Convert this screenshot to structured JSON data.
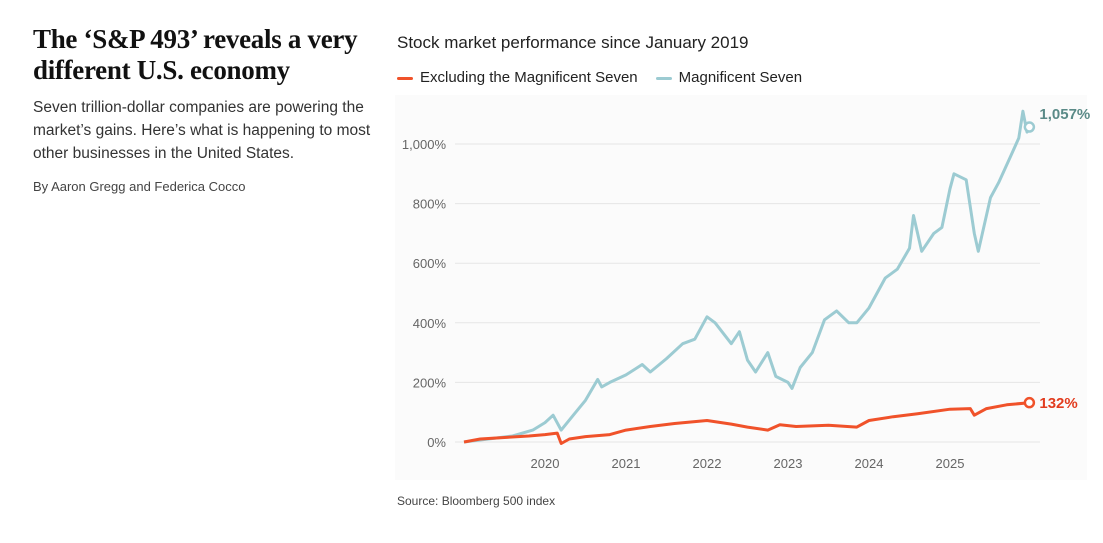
{
  "headline": "The ‘S&P 493’ reveals a very different U.S. economy",
  "dek": "Seven trillion-dollar companies are powering the market’s gains. Here’s what is happening to most other businesses in the United States.",
  "byline": "By Aaron Gregg and Federica Cocco",
  "source": "Source: Bloomberg 500 index",
  "chart_data": {
    "type": "line",
    "title": "Stock market performance since January 2019",
    "xlabel": "",
    "ylabel": "",
    "ylim": [
      0,
      1100
    ],
    "yticks": [
      0,
      200,
      400,
      600,
      800,
      1000
    ],
    "ytick_labels": [
      "0%",
      "200%",
      "400%",
      "600%",
      "800%",
      "1,000%"
    ],
    "xticks": [
      2020,
      2021,
      2022,
      2023,
      2024,
      2025
    ],
    "xtick_labels": [
      "2020",
      "2021",
      "2022",
      "2023",
      "2024",
      "2025"
    ],
    "grid": "horizontal",
    "legend": "top-left",
    "series": [
      {
        "name": "Excluding the Magnificent Seven",
        "color": "#f0522a",
        "end_label": "132%",
        "end_label_color": "#e23c1f",
        "x": [
          2019.0,
          2019.2,
          2019.5,
          2019.8,
          2020.0,
          2020.15,
          2020.2,
          2020.3,
          2020.5,
          2020.8,
          2021.0,
          2021.3,
          2021.6,
          2022.0,
          2022.3,
          2022.5,
          2022.75,
          2022.9,
          2023.1,
          2023.5,
          2023.85,
          2024.0,
          2024.3,
          2024.6,
          2025.0,
          2025.25,
          2025.3,
          2025.45,
          2025.7,
          2025.98
        ],
        "y": [
          0,
          10,
          15,
          20,
          25,
          30,
          -5,
          10,
          18,
          25,
          40,
          52,
          62,
          72,
          60,
          50,
          40,
          58,
          52,
          56,
          50,
          72,
          85,
          95,
          110,
          112,
          90,
          112,
          125,
          132
        ]
      },
      {
        "name": "Magnificent Seven",
        "color": "#9ccbd2",
        "end_label": "1,057%",
        "end_label_color": "#5a8a87",
        "x": [
          2019.0,
          2019.3,
          2019.6,
          2019.85,
          2020.0,
          2020.1,
          2020.2,
          2020.35,
          2020.5,
          2020.65,
          2020.7,
          2020.8,
          2021.0,
          2021.2,
          2021.3,
          2021.5,
          2021.7,
          2021.85,
          2022.0,
          2022.1,
          2022.3,
          2022.4,
          2022.5,
          2022.6,
          2022.75,
          2022.85,
          2023.0,
          2023.05,
          2023.15,
          2023.3,
          2023.45,
          2023.6,
          2023.75,
          2023.85,
          2024.0,
          2024.2,
          2024.35,
          2024.5,
          2024.55,
          2024.65,
          2024.8,
          2024.9,
          2025.0,
          2025.05,
          2025.2,
          2025.3,
          2025.35,
          2025.5,
          2025.6,
          2025.75,
          2025.85,
          2025.9,
          2025.95,
          2025.98
        ],
        "y": [
          0,
          10,
          20,
          40,
          65,
          90,
          40,
          90,
          140,
          210,
          185,
          200,
          225,
          260,
          235,
          280,
          330,
          345,
          420,
          400,
          330,
          370,
          275,
          235,
          300,
          220,
          200,
          180,
          250,
          300,
          410,
          440,
          400,
          400,
          450,
          550,
          580,
          650,
          760,
          640,
          700,
          720,
          850,
          900,
          880,
          700,
          640,
          820,
          870,
          960,
          1020,
          1110,
          1040,
          1057
        ]
      }
    ]
  }
}
